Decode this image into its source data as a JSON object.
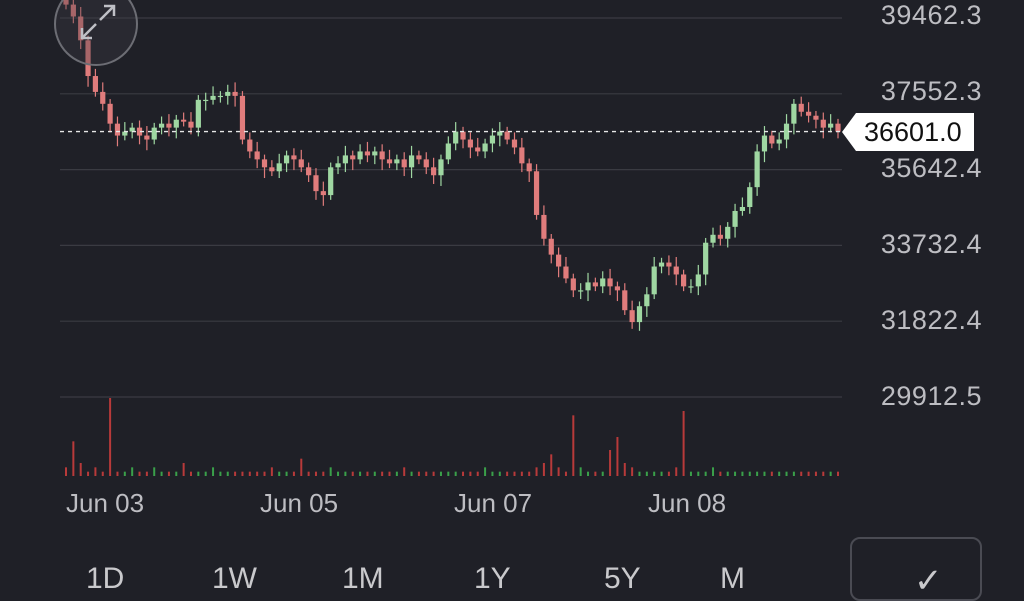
{
  "price_axis": {
    "labels": [
      "39462.3",
      "37552.3",
      "35642.4",
      "33732.4",
      "31822.4",
      "29912.5"
    ]
  },
  "date_axis": {
    "labels": [
      "Jun 03",
      "Jun 05",
      "Jun 07",
      "Jun 08"
    ]
  },
  "current_price": "36601.0",
  "timeframes": [
    "1D",
    "1W",
    "1M",
    "1Y",
    "5Y",
    "M"
  ],
  "colors": {
    "background": "#1f2027",
    "up": "#9fd7a2",
    "down": "#e07c7c",
    "grid": "#3a3b42",
    "volume_up": "#3aa04a",
    "volume_down": "#b83a3a"
  },
  "icons": {
    "expand": "expand-arrows-icon",
    "confirm": "checkmark-icon"
  },
  "chart_data": {
    "type": "candlestick",
    "ylim": [
      29912.5,
      40000
    ],
    "yticks": [
      39462.3,
      37552.3,
      35642.4,
      33732.4,
      31822.4,
      29912.5
    ],
    "current_price": 36601.0,
    "close_series": [
      39800,
      39500,
      38900,
      38000,
      37600,
      37300,
      36800,
      36500,
      36600,
      36700,
      36500,
      36400,
      36700,
      36800,
      36700,
      36900,
      36850,
      36700,
      37400,
      37400,
      37500,
      37500,
      37600,
      37500,
      36400,
      36100,
      35900,
      35700,
      35600,
      35800,
      36000,
      35900,
      35700,
      35500,
      35100,
      35000,
      35700,
      35800,
      36000,
      35900,
      36100,
      36000,
      36100,
      35900,
      35800,
      35900,
      35700,
      36000,
      35900,
      35700,
      35500,
      35900,
      36300,
      36600,
      36400,
      36200,
      36100,
      36300,
      36500,
      36600,
      36400,
      36200,
      35800,
      35600,
      34500,
      33900,
      33500,
      33200,
      32900,
      32600,
      32600,
      32800,
      32700,
      32900,
      32700,
      32600,
      32100,
      31800,
      32200,
      32500,
      33200,
      33300,
      33200,
      33000,
      32700,
      32700,
      33000,
      33800,
      34000,
      33900,
      34200,
      34600,
      34700,
      35200,
      36100,
      36500,
      36300,
      36400,
      36800,
      37300,
      37100,
      37000,
      36900,
      36700,
      36800,
      36600
    ],
    "volume": [
      2,
      8,
      3,
      1,
      2,
      1,
      18,
      1,
      1,
      2,
      1,
      1,
      2,
      1,
      1,
      1,
      3,
      1,
      1,
      1,
      2,
      1,
      1,
      1,
      1,
      1,
      1,
      1,
      2,
      1,
      1,
      1,
      4,
      1,
      1,
      1,
      2,
      1,
      1,
      1,
      1,
      1,
      1,
      1,
      1,
      1,
      2,
      1,
      1,
      1,
      1,
      1,
      1,
      1,
      1,
      1,
      1,
      2,
      1,
      1,
      1,
      1,
      1,
      1,
      2,
      3,
      5,
      2,
      1,
      14,
      2,
      1,
      1,
      1,
      6,
      9,
      3,
      2,
      1,
      1,
      1,
      1,
      1,
      2,
      15,
      1,
      1,
      1,
      2,
      1,
      1,
      1,
      1,
      1,
      1,
      1,
      1,
      1,
      1,
      1,
      1,
      1,
      1,
      1,
      1,
      1
    ]
  }
}
